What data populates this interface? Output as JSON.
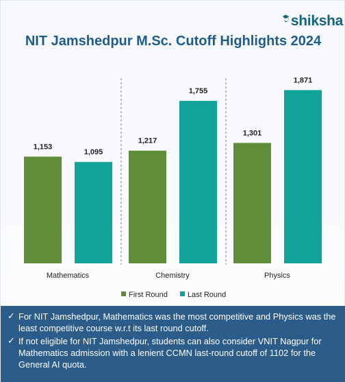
{
  "brand": {
    "name": "shiksha",
    "icon": "graduation-cap-icon"
  },
  "colors": {
    "first_round": "#5f8d3a",
    "last_round": "#11a39b",
    "title": "#1e5d8a",
    "footer_bg": "#2b5c8a"
  },
  "chart_data": {
    "type": "bar",
    "title": "NIT Jamshedpur M.Sc. Cutoff Highlights 2024",
    "categories": [
      "Mathematics",
      "Chemistry",
      "Physics"
    ],
    "series": [
      {
        "name": "First Round",
        "values": [
          1153,
          1217,
          1301
        ],
        "labels": [
          "1,153",
          "1,217",
          "1,301"
        ]
      },
      {
        "name": "Last Round",
        "values": [
          1095,
          1755,
          1871
        ],
        "labels": [
          "1,095",
          "1,755",
          "1,871"
        ]
      }
    ],
    "ylim": [
      0,
      2000
    ],
    "grid": false,
    "legend": "bottom",
    "xlabel": "",
    "ylabel": ""
  },
  "notes": [
    "For NIT Jamshedpur, Mathematics was the most competitive and Physics was the least competitive course w.r.t its last round cutoff.",
    "If not eligible for NIT Jamshedpur, students can also consider VNIT Nagpur for Mathematics admission with a lenient CCMN last-round cutoff of 1102 for the General AI quota."
  ],
  "check_glyph": "✓"
}
